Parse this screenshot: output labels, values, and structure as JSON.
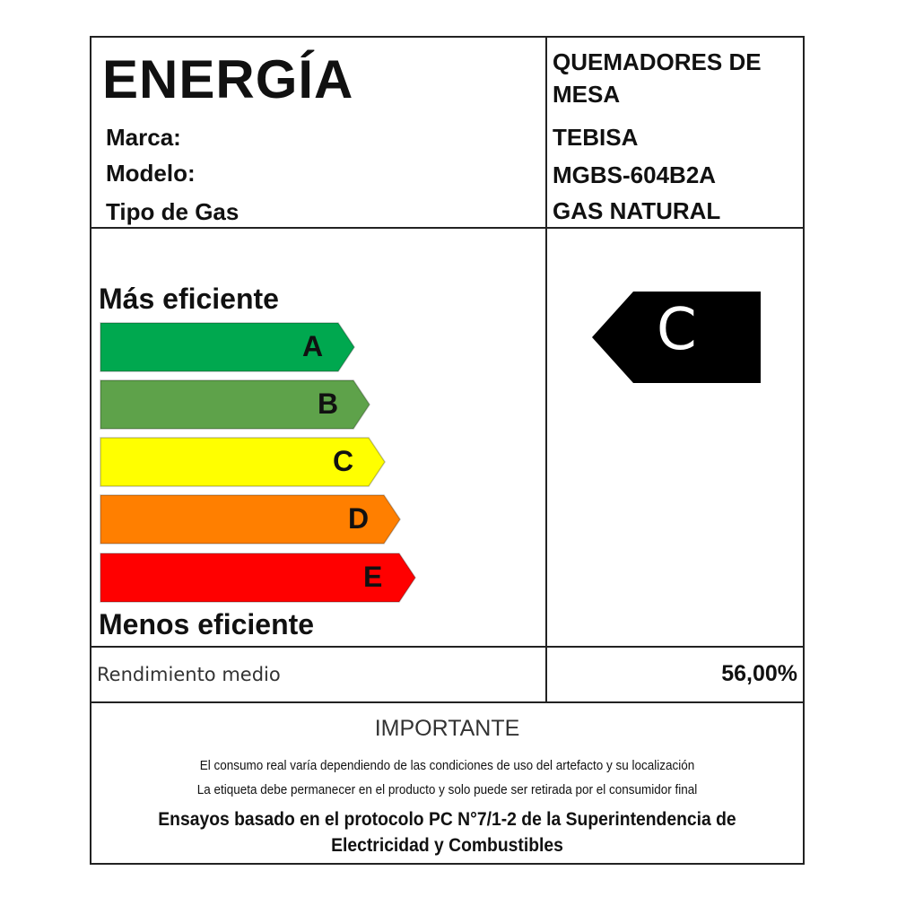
{
  "header": {
    "title": "ENERGÍA",
    "fields": [
      {
        "label": "Marca:",
        "value": "TEBISA"
      },
      {
        "label": "Modelo:",
        "value": "MGBS-604B2A"
      },
      {
        "label": "Tipo de Gas",
        "value": "GAS NATURAL"
      }
    ],
    "product_line1": "QUEMADORES DE",
    "product_line2": "MESA"
  },
  "scale": {
    "top_label": "Más eficiente",
    "bottom_label": "Menos eficiente",
    "classes": [
      {
        "letter": "A",
        "color": "#00a84f"
      },
      {
        "letter": "B",
        "color": "#5ea24a"
      },
      {
        "letter": "C",
        "color": "#ffff00"
      },
      {
        "letter": "D",
        "color": "#ff7f00"
      },
      {
        "letter": "E",
        "color": "#ff0000"
      }
    ]
  },
  "rating": {
    "letter": "C",
    "color": "#000000"
  },
  "performance": {
    "label": "Rendimiento medio",
    "value": "56,00%"
  },
  "notice": {
    "heading": "IMPORTANTE",
    "line1": "El consumo real varía dependiendo de las condiciones de uso del artefacto y su localización",
    "line2": "La etiqueta debe permanecer en el producto y solo puede ser retirada por el consumidor final",
    "line3": "Ensayos basado en el protocolo PC N°7/1-2 de la Superintendencia de",
    "line4": "Electricidad y Combustibles"
  }
}
